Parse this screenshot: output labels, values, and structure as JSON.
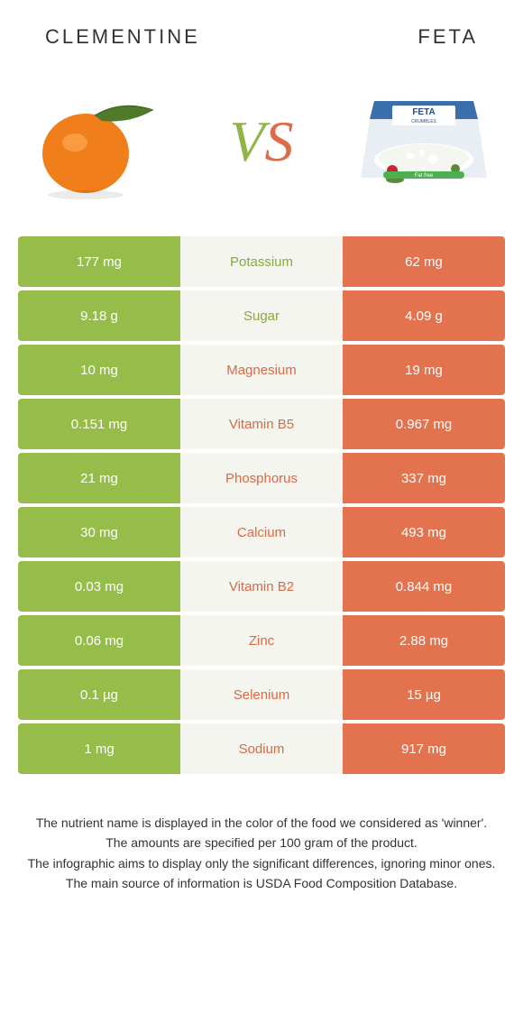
{
  "colors": {
    "left_bg": "#96bc49",
    "right_bg": "#e2734e",
    "mid_bg": "#f5f5f0",
    "left_winner_text": "#8aa845",
    "right_winner_text": "#d86a45",
    "title_text": "#333333"
  },
  "header": {
    "left_title": "CLEMENTINE",
    "right_title": "FETA"
  },
  "vs": {
    "v": "V",
    "s": "S"
  },
  "rows": [
    {
      "left": "177 mg",
      "label": "Potassium",
      "right": "62 mg",
      "winner": "left"
    },
    {
      "left": "9.18 g",
      "label": "Sugar",
      "right": "4.09 g",
      "winner": "left"
    },
    {
      "left": "10 mg",
      "label": "Magnesium",
      "right": "19 mg",
      "winner": "right"
    },
    {
      "left": "0.151 mg",
      "label": "Vitamin B5",
      "right": "0.967 mg",
      "winner": "right"
    },
    {
      "left": "21 mg",
      "label": "Phosphorus",
      "right": "337 mg",
      "winner": "right"
    },
    {
      "left": "30 mg",
      "label": "Calcium",
      "right": "493 mg",
      "winner": "right"
    },
    {
      "left": "0.03 mg",
      "label": "Vitamin B2",
      "right": "0.844 mg",
      "winner": "right"
    },
    {
      "left": "0.06 mg",
      "label": "Zinc",
      "right": "2.88 mg",
      "winner": "right"
    },
    {
      "left": "0.1 µg",
      "label": "Selenium",
      "right": "15 µg",
      "winner": "right"
    },
    {
      "left": "1 mg",
      "label": "Sodium",
      "right": "917 mg",
      "winner": "right"
    }
  ],
  "footnotes": [
    "The nutrient name is displayed in the color of the food we considered as 'winner'.",
    "The amounts are specified per 100 gram of the product.",
    "The infographic aims to display only the significant differences, ignoring minor ones.",
    "The main source of information is USDA Food Composition Database."
  ]
}
